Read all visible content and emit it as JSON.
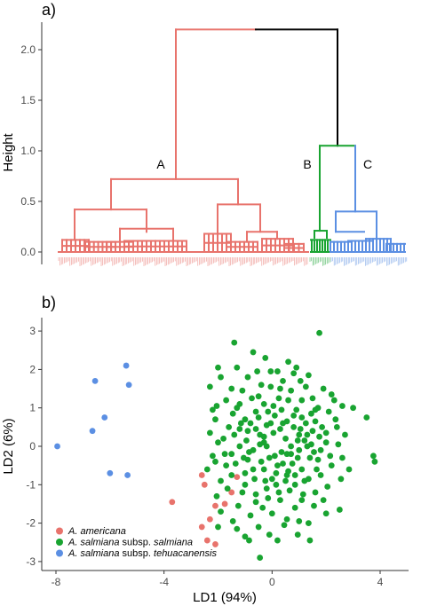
{
  "colors": {
    "americana": "#E8736C",
    "salmiana": "#19A431",
    "tehuacanensis": "#5B8FE3",
    "root": "#000000"
  },
  "chart_data": [
    {
      "type": "dendrogram",
      "panel_label": "a)",
      "ylabel": "Height",
      "ylim": [
        -0.15,
        2.3
      ],
      "yticks": [
        0.0,
        0.5,
        1.0,
        1.5,
        2.0
      ],
      "ytick_labels": [
        "0.0",
        "0.5",
        "1.0",
        "1.5",
        "2.0"
      ],
      "root_height": 2.2,
      "merge_height_B_C": 1.05,
      "clusters": [
        {
          "label": "A",
          "color_key": "americana",
          "merge_height": 2.2,
          "sub_heights": [
            0.72,
            0.42,
            0.38,
            0.47,
            0.23
          ]
        },
        {
          "label": "B",
          "color_key": "salmiana",
          "merge_height": 1.05,
          "sub_heights": [
            0.21,
            0.14
          ]
        },
        {
          "label": "C",
          "color_key": "tehuacanensis",
          "merge_height": 0.4,
          "sub_heights": [
            0.59,
            0.2,
            0.13
          ]
        }
      ]
    },
    {
      "type": "scatter",
      "panel_label": "b)",
      "xlabel": "LD1 (94%)",
      "ylabel": "LD2 (6%)",
      "xlim": [
        -8.4,
        7.3
      ],
      "ylim": [
        -3.3,
        3.3
      ],
      "xticks": [
        -8,
        -4,
        0,
        4
      ],
      "yticks": [
        -3,
        -2,
        -1,
        0,
        1,
        2,
        3
      ],
      "legend": {
        "placement": "bottom-left",
        "entries": [
          {
            "key": "americana",
            "parts": [
              {
                "text": "A. americana",
                "italic": true
              }
            ]
          },
          {
            "key": "salmiana",
            "parts": [
              {
                "text": "A. salmiana",
                "italic": true
              },
              {
                "text": " subsp. ",
                "italic": false
              },
              {
                "text": "salmiana",
                "italic": true
              }
            ]
          },
          {
            "key": "tehuacanensis",
            "parts": [
              {
                "text": "A. salmiana",
                "italic": true
              },
              {
                "text": " subsp. ",
                "italic": false
              },
              {
                "text": "tehuacanensis",
                "italic": true
              }
            ]
          }
        ]
      },
      "series": [
        {
          "key": "tehuacanensis",
          "points": [
            [
              -7.95,
              0.0
            ],
            [
              -6.55,
              1.7
            ],
            [
              -6.65,
              0.4
            ],
            [
              -6.2,
              0.75
            ],
            [
              -5.4,
              2.1
            ],
            [
              -5.3,
              1.6
            ],
            [
              -6.0,
              -0.7
            ],
            [
              -5.35,
              -0.75
            ]
          ]
        },
        {
          "key": "americana",
          "points": [
            [
              -3.7,
              -1.45
            ],
            [
              -2.6,
              -0.75
            ],
            [
              -2.5,
              -1.0
            ],
            [
              -2.3,
              -1.9
            ],
            [
              -2.6,
              -2.1
            ],
            [
              -2.4,
              -2.45
            ],
            [
              -2.1,
              -2.55
            ],
            [
              -1.75,
              -1.5
            ],
            [
              -1.5,
              -1.2
            ],
            [
              -2.1,
              -1.55
            ],
            [
              -1.3,
              -0.8
            ]
          ]
        },
        {
          "key": "salmiana",
          "points": [
            [
              -1.4,
              2.7
            ],
            [
              -0.7,
              2.45
            ],
            [
              -2.0,
              2.05
            ],
            [
              1.75,
              2.95
            ],
            [
              -2.05,
              1.05
            ],
            [
              -1.3,
              2.05
            ],
            [
              -0.05,
              1.95
            ],
            [
              0.8,
              1.9
            ],
            [
              1.35,
              1.85
            ],
            [
              3.5,
              0.75
            ],
            [
              3.75,
              -0.25
            ],
            [
              3.8,
              -0.4
            ],
            [
              3.0,
              1.0
            ],
            [
              2.3,
              1.2
            ],
            [
              2.6,
              -0.3
            ],
            [
              2.5,
              -1.65
            ],
            [
              2.0,
              -1.75
            ],
            [
              1.1,
              -1.4
            ],
            [
              -0.45,
              -2.9
            ],
            [
              0.2,
              -2.45
            ],
            [
              1.4,
              -2.45
            ],
            [
              0.55,
              -1.9
            ],
            [
              0.95,
              -2.3
            ],
            [
              -1.0,
              -2.35
            ],
            [
              -1.3,
              -2.15
            ],
            [
              -2.0,
              -2.1
            ],
            [
              -1.45,
              -1.95
            ],
            [
              -1.9,
              -1.7
            ],
            [
              -0.6,
              -1.45
            ],
            [
              -1.7,
              -0.5
            ],
            [
              -2.2,
              -0.25
            ],
            [
              -2.0,
              0.1
            ],
            [
              -2.3,
              0.35
            ],
            [
              -2.1,
              0.7
            ],
            [
              -1.0,
              -0.7
            ],
            [
              0.15,
              -1.0
            ],
            [
              0.55,
              -0.75
            ],
            [
              1.2,
              -0.9
            ],
            [
              1.8,
              -0.75
            ],
            [
              -0.9,
              0.4
            ],
            [
              -0.3,
              0.1
            ],
            [
              0.4,
              0.6
            ],
            [
              1.0,
              0.3
            ],
            [
              1.6,
              0.65
            ],
            [
              2.0,
              0.1
            ],
            [
              -0.5,
              1.3
            ],
            [
              0.3,
              1.5
            ],
            [
              1.1,
              1.2
            ],
            [
              -1.2,
              1.1
            ],
            [
              -0.1,
              -0.3
            ],
            [
              0.7,
              -0.2
            ],
            [
              1.4,
              -0.3
            ],
            [
              -1.5,
              -0.2
            ],
            [
              -0.6,
              0.9
            ],
            [
              0.1,
              0.8
            ],
            [
              0.9,
              0.95
            ],
            [
              1.7,
              1.0
            ],
            [
              -1.1,
              -1.2
            ],
            [
              0.3,
              -1.4
            ],
            [
              1.6,
              -1.2
            ],
            [
              -0.3,
              -0.6
            ],
            [
              2.2,
              -0.5
            ],
            [
              -1.6,
              0.5
            ],
            [
              0.6,
              1.2
            ],
            [
              -0.8,
              -1.8
            ],
            [
              0.0,
              -1.75
            ],
            [
              1.3,
              0.0
            ],
            [
              -0.2,
              0.55
            ],
            [
              2.4,
              0.5
            ],
            [
              -1.9,
              -0.9
            ],
            [
              0.85,
              -1.6
            ],
            [
              -0.4,
              1.6
            ],
            [
              1.9,
              1.5
            ],
            [
              -1.2,
              0.0
            ],
            [
              0.5,
              0.2
            ],
            [
              1.1,
              -0.6
            ],
            [
              -0.7,
              -0.1
            ],
            [
              2.7,
              0.3
            ],
            [
              -2.4,
              -0.6
            ],
            [
              0.2,
              1.95
            ],
            [
              -1.5,
              1.5
            ],
            [
              1.5,
              0.4
            ],
            [
              -0.2,
              -1.1
            ],
            [
              0.8,
              0.5
            ],
            [
              -1.0,
              0.7
            ],
            [
              2.1,
              0.9
            ],
            [
              -0.5,
              -2.1
            ],
            [
              1.0,
              -1.95
            ],
            [
              -1.7,
              1.2
            ],
            [
              0.4,
              -0.45
            ],
            [
              -2.2,
              0.95
            ],
            [
              1.8,
              -0.1
            ],
            [
              -0.9,
              1.8
            ],
            [
              0.6,
              2.2
            ],
            [
              -0.3,
              1.1
            ],
            [
              1.25,
              1.55
            ],
            [
              -1.35,
              -0.45
            ],
            [
              2.05,
              -1.05
            ],
            [
              0.05,
              0.35
            ],
            [
              -0.65,
              -0.85
            ],
            [
              1.55,
              -1.55
            ],
            [
              0.35,
              0.95
            ],
            [
              -1.8,
              0.2
            ],
            [
              2.45,
              0.05
            ],
            [
              -0.15,
              -1.35
            ],
            [
              0.95,
              0.15
            ],
            [
              -1.1,
              1.45
            ],
            [
              1.75,
              0.25
            ],
            [
              -0.45,
              0.3
            ],
            [
              0.65,
              -1.15
            ],
            [
              -2.05,
              -1.3
            ],
            [
              1.35,
              -2.0
            ],
            [
              -0.85,
              -2.45
            ],
            [
              0.25,
              1.25
            ],
            [
              2.2,
              1.35
            ],
            [
              -1.45,
              0.85
            ],
            [
              0.75,
              -0.45
            ],
            [
              -0.25,
              2.3
            ],
            [
              1.05,
              1.7
            ],
            [
              -2.3,
              1.55
            ],
            [
              1.9,
              -1.4
            ],
            [
              -0.55,
              1.95
            ],
            [
              0.45,
              -2.05
            ],
            [
              2.55,
              -0.85
            ],
            [
              -1.25,
              -1.55
            ],
            [
              0.15,
              -0.7
            ],
            [
              1.45,
              0.85
            ],
            [
              -0.95,
              0.15
            ],
            [
              0.85,
              -1.0
            ],
            [
              -0.05,
              1.55
            ],
            [
              1.65,
              -0.6
            ],
            [
              -1.65,
              -1.1
            ],
            [
              2.35,
              0.7
            ],
            [
              -0.35,
              -1.6
            ],
            [
              0.55,
              0.65
            ],
            [
              -1.05,
              -0.3
            ],
            [
              1.15,
              -1.25
            ],
            [
              -0.75,
              1.25
            ],
            [
              0.35,
              -0.15
            ],
            [
              2.85,
              -0.6
            ],
            [
              -1.9,
              1.8
            ],
            [
              1.25,
              0.6
            ],
            [
              -0.1,
              -2.3
            ],
            [
              0.9,
              2.05
            ],
            [
              -1.5,
              -0.75
            ],
            [
              1.85,
              0.5
            ],
            [
              -0.6,
              -1.25
            ],
            [
              0.05,
              1.05
            ],
            [
              2.15,
              -0.25
            ],
            [
              -1.2,
              0.45
            ],
            [
              0.7,
              1.45
            ],
            [
              -0.4,
              -0.4
            ],
            [
              1.5,
              1.25
            ],
            [
              -1.75,
              -0.2
            ],
            [
              0.25,
              -1.2
            ],
            [
              1.05,
              0.45
            ],
            [
              -0.8,
              0.6
            ],
            [
              2.6,
              1.05
            ],
            [
              -0.2,
              0.0
            ],
            [
              1.35,
              -0.85
            ],
            [
              -1.3,
              1.0
            ],
            [
              0.5,
              -0.9
            ],
            [
              -2.1,
              -0.4
            ],
            [
              0.95,
              -0.3
            ],
            [
              -0.5,
              0.75
            ],
            [
              1.7,
              -0.35
            ],
            [
              -1.0,
              -1.0
            ],
            [
              0.3,
              0.45
            ],
            [
              -0.15,
              0.9
            ],
            [
              1.2,
              0.15
            ],
            [
              -0.7,
              -0.6
            ],
            [
              2.0,
              0.35
            ],
            [
              -1.4,
              0.3
            ],
            [
              0.6,
              -0.65
            ],
            [
              0.1,
              -0.25
            ],
            [
              1.45,
              0.05
            ],
            [
              -0.9,
              -0.35
            ],
            [
              0.8,
              0.8
            ],
            [
              -0.3,
              0.25
            ],
            [
              1.0,
              -0.1
            ],
            [
              -1.15,
              0.6
            ],
            [
              0.4,
              1.7
            ],
            [
              0.0,
              -0.85
            ],
            [
              1.6,
              0.95
            ],
            [
              -0.6,
              0.45
            ],
            [
              0.55,
              -0.2
            ],
            [
              -0.05,
              0.6
            ],
            [
              1.3,
              0.3
            ],
            [
              -0.85,
              -0.15
            ],
            [
              0.7,
              0.0
            ],
            [
              0.2,
              -0.5
            ],
            [
              1.1,
              0.75
            ],
            [
              -0.45,
              0.05
            ],
            [
              0.85,
              -0.75
            ],
            [
              -0.25,
              -0.9
            ],
            [
              1.55,
              -0.15
            ]
          ]
        }
      ]
    }
  ]
}
